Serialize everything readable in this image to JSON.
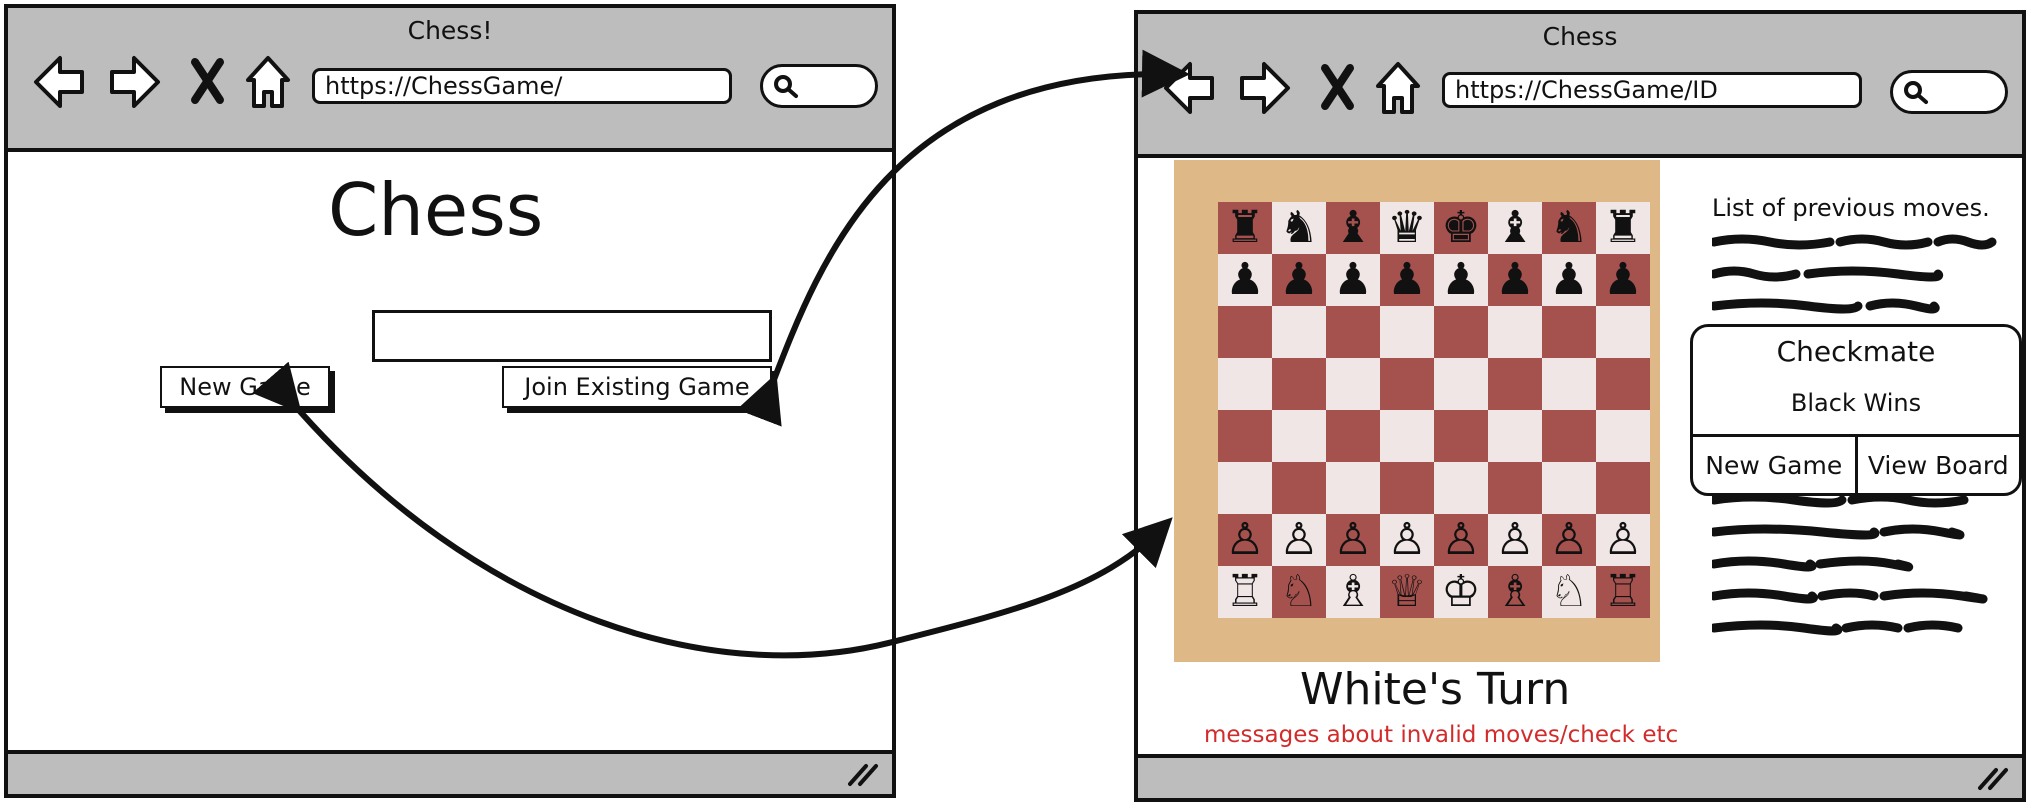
{
  "left_window": {
    "title": "Chess!",
    "url": "https://ChessGame/",
    "heading": "Chess",
    "game_id_input": {
      "value": "",
      "placeholder": ""
    },
    "new_game_label": "New Game",
    "join_label": "Join Existing Game"
  },
  "right_window": {
    "title": "Chess",
    "url": "https://ChessGame/ID",
    "moves_title": "List of previous moves.",
    "modal": {
      "title": "Checkmate",
      "subtitle": "Black Wins",
      "new_game_label": "New Game",
      "view_board_label": "View Board"
    },
    "turn_text": "White's Turn",
    "message_text": "messages about invalid moves/check etc"
  },
  "board": {
    "rows": [
      [
        "♜",
        "♞",
        "♝",
        "♛",
        "♚",
        "♝",
        "♞",
        "♜"
      ],
      [
        "♟",
        "♟",
        "♟",
        "♟",
        "♟",
        "♟",
        "♟",
        "♟"
      ],
      [
        "",
        "",
        "",
        "",
        "",
        "",
        "",
        ""
      ],
      [
        "",
        "",
        "",
        "",
        "",
        "",
        "",
        ""
      ],
      [
        "",
        "",
        "",
        "",
        "",
        "",
        "",
        ""
      ],
      [
        "",
        "",
        "",
        "",
        "",
        "",
        "",
        ""
      ],
      [
        "♙",
        "♙",
        "♙",
        "♙",
        "♙",
        "♙",
        "♙",
        "♙"
      ],
      [
        "♖",
        "♘",
        "♗",
        "♕",
        "♔",
        "♗",
        "♘",
        "♖"
      ]
    ]
  },
  "colors": {
    "board_frame": "#deb887",
    "dark_square": "#a5514e",
    "light_square": "#f1e6e6",
    "chrome": "#bdbdbd",
    "message": "#d22b2b"
  }
}
